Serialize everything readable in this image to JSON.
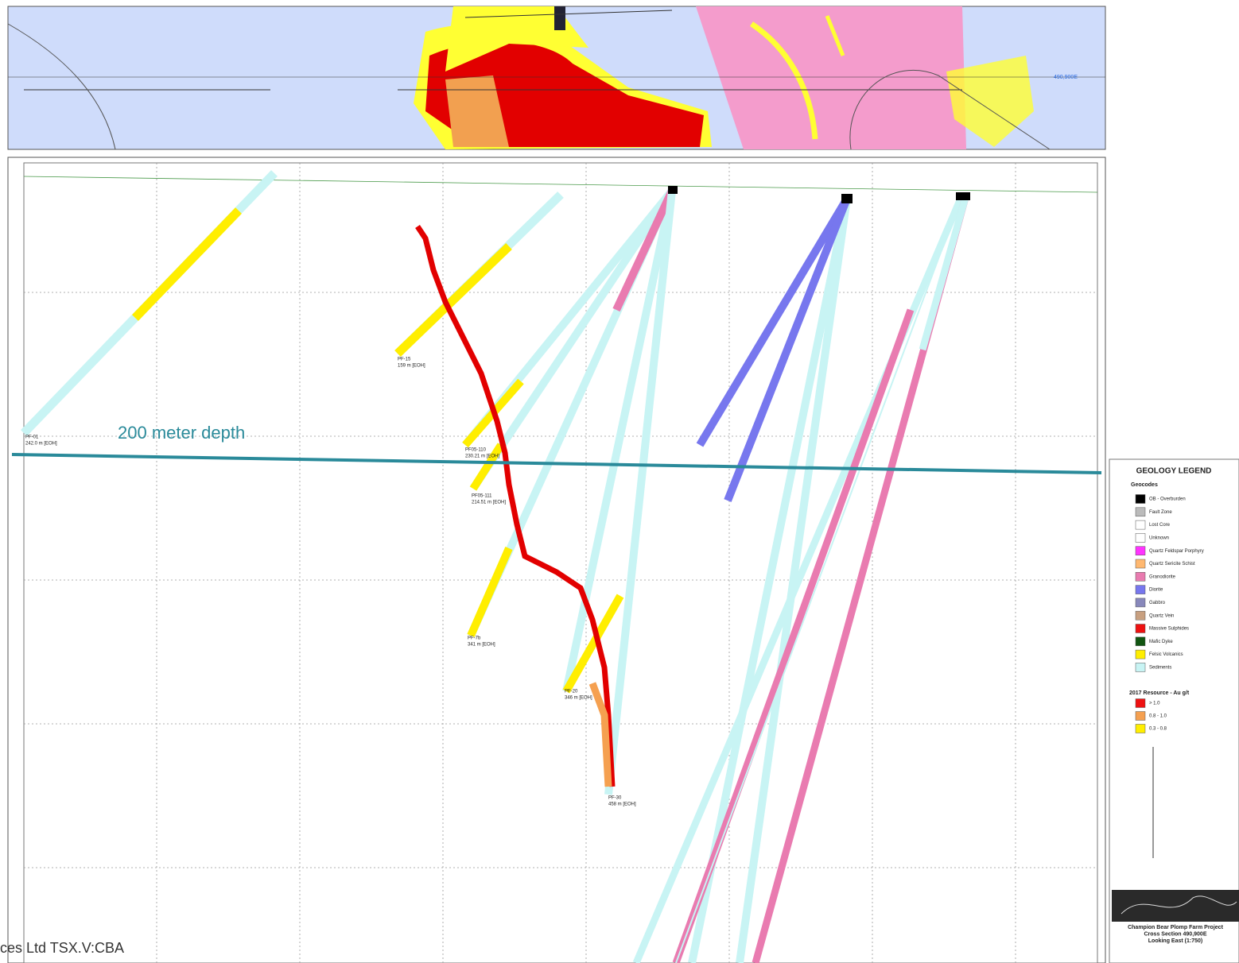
{
  "plan_map": {
    "section_label": "490,900E"
  },
  "section": {
    "depth_annotation": "200 meter depth",
    "holes": [
      {
        "name": "PF-01",
        "depth": "242.0 m [EOH]"
      },
      {
        "name": "PF-15",
        "depth": "159 m [EOH]"
      },
      {
        "name": "PF05-110",
        "depth": "230.21 m [EOH]"
      },
      {
        "name": "PF05-111",
        "depth": "214.51 m [EOH]"
      },
      {
        "name": "PF-7b",
        "depth": "341 m [EOH]"
      },
      {
        "name": "PF-20",
        "depth": "346 m [EOH]"
      },
      {
        "name": "PF-30",
        "depth": "458 m [EOH]"
      }
    ]
  },
  "legend": {
    "title": "GEOLOGY LEGEND",
    "geocodes_title": "Geocodes",
    "geocodes": [
      {
        "name": "OB - Overburden",
        "color": "#000000"
      },
      {
        "name": "Fault Zone",
        "color": "#bbbbbb"
      },
      {
        "name": "Lost Core",
        "color": "#ffffff"
      },
      {
        "name": "Unknown",
        "color": "#ffffff"
      },
      {
        "name": "Quartz Feldspar Porphyry",
        "color": "#ff33ff"
      },
      {
        "name": "Quartz Sericite Schist",
        "color": "#ffb870"
      },
      {
        "name": "Granodiorite",
        "color": "#e97bb0"
      },
      {
        "name": "Diorite",
        "color": "#7777ee"
      },
      {
        "name": "Gabbro",
        "color": "#8888bb"
      },
      {
        "name": "Quartz Vein",
        "color": "#c8a080"
      },
      {
        "name": "Massive Sulphides",
        "color": "#ee1111"
      },
      {
        "name": "Mafic Dyke",
        "color": "#115511"
      },
      {
        "name": "Felsic Volcanics",
        "color": "#ffee00"
      },
      {
        "name": "Sediments",
        "color": "#c8f4f4"
      }
    ],
    "resource_title": "2017 Resource - Au g/t",
    "resource": [
      {
        "name": "> 1.0",
        "color": "#ee1111"
      },
      {
        "name": "0.8 - 1.0",
        "color": "#f5a050"
      },
      {
        "name": "0.3 - 0.8",
        "color": "#ffee00"
      }
    ]
  },
  "title_block": {
    "lines": [
      "Champion Bear Plomp Farm Project",
      "Cross Section 490,900E",
      "Looking East (1:750)"
    ]
  },
  "footer": "ces Ltd TSX.V:CBA"
}
